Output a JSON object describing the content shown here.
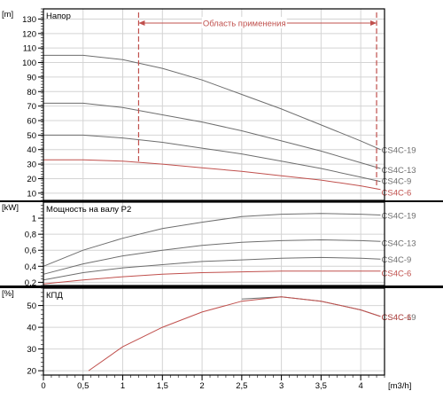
{
  "chart_data": {
    "type": "line",
    "x_axis": {
      "unit": "[m3/h]",
      "ticks": [
        "0",
        "0,5",
        "1",
        "1,5",
        "2",
        "2,5",
        "3",
        "3,5",
        "4"
      ],
      "min": 0,
      "max": 4.3
    },
    "application_range": {
      "label": "Область применения",
      "x_start": 1.2,
      "x_end": 4.2
    },
    "panels": [
      {
        "key": "head",
        "title": "Напор",
        "unit": "[m]",
        "ylim": [
          5,
          137
        ],
        "ticks": [
          "10",
          "20",
          "30",
          "40",
          "50",
          "60",
          "70",
          "80",
          "90",
          "100",
          "110",
          "120",
          "130"
        ],
        "series": [
          {
            "name": "CS4C-19",
            "color": "#6e6e6e",
            "points": [
              [
                0,
                105
              ],
              [
                0.5,
                105
              ],
              [
                1,
                102
              ],
              [
                1.5,
                96
              ],
              [
                2,
                88
              ],
              [
                2.5,
                78
              ],
              [
                3,
                68
              ],
              [
                3.5,
                57
              ],
              [
                4,
                46
              ],
              [
                4.25,
                40
              ]
            ]
          },
          {
            "name": "CS4C-13",
            "color": "#6e6e6e",
            "points": [
              [
                0,
                72
              ],
              [
                0.5,
                72
              ],
              [
                1,
                69
              ],
              [
                1.5,
                64
              ],
              [
                2,
                59
              ],
              [
                2.5,
                53
              ],
              [
                3,
                46
              ],
              [
                3.5,
                39
              ],
              [
                4,
                31
              ],
              [
                4.25,
                27
              ]
            ]
          },
          {
            "name": "CS4C-9",
            "color": "#6e6e6e",
            "points": [
              [
                0,
                50
              ],
              [
                0.5,
                50
              ],
              [
                1,
                48
              ],
              [
                1.5,
                45
              ],
              [
                2,
                41
              ],
              [
                2.5,
                37
              ],
              [
                3,
                32
              ],
              [
                3.5,
                27
              ],
              [
                4,
                21
              ],
              [
                4.25,
                18
              ]
            ]
          },
          {
            "name": "CS4C-6",
            "color": "#c0504d",
            "points": [
              [
                0,
                33
              ],
              [
                0.5,
                33
              ],
              [
                1,
                32
              ],
              [
                1.5,
                30
              ],
              [
                2,
                27.5
              ],
              [
                2.5,
                25
              ],
              [
                3,
                22
              ],
              [
                3.5,
                19
              ],
              [
                4,
                15
              ],
              [
                4.25,
                12.5
              ]
            ]
          }
        ]
      },
      {
        "key": "power",
        "title": "Мощность на валу P2",
        "unit": "[kW]",
        "ylim": [
          0.16,
          1.2
        ],
        "ticks": [
          "0,2",
          "0,4",
          "0,6",
          "0,8",
          "1"
        ],
        "series": [
          {
            "name": "CS4C-19",
            "color": "#6e6e6e",
            "points": [
              [
                0,
                0.4
              ],
              [
                0.5,
                0.6
              ],
              [
                1,
                0.75
              ],
              [
                1.5,
                0.87
              ],
              [
                2,
                0.95
              ],
              [
                2.5,
                1.02
              ],
              [
                3,
                1.05
              ],
              [
                3.5,
                1.06
              ],
              [
                4,
                1.05
              ],
              [
                4.25,
                1.04
              ]
            ]
          },
          {
            "name": "CS4C-13",
            "color": "#6e6e6e",
            "points": [
              [
                0,
                0.3
              ],
              [
                0.5,
                0.43
              ],
              [
                1,
                0.53
              ],
              [
                1.5,
                0.6
              ],
              [
                2,
                0.66
              ],
              [
                2.5,
                0.7
              ],
              [
                3,
                0.72
              ],
              [
                3.5,
                0.73
              ],
              [
                4,
                0.72
              ],
              [
                4.25,
                0.71
              ]
            ]
          },
          {
            "name": "CS4C-9",
            "color": "#6e6e6e",
            "points": [
              [
                0,
                0.23
              ],
              [
                0.5,
                0.32
              ],
              [
                1,
                0.38
              ],
              [
                1.5,
                0.42
              ],
              [
                2,
                0.46
              ],
              [
                2.5,
                0.48
              ],
              [
                3,
                0.5
              ],
              [
                3.5,
                0.51
              ],
              [
                4,
                0.5
              ],
              [
                4.25,
                0.49
              ]
            ]
          },
          {
            "name": "CS4C-6",
            "color": "#c0504d",
            "points": [
              [
                0,
                0.18
              ],
              [
                0.5,
                0.23
              ],
              [
                1,
                0.27
              ],
              [
                1.5,
                0.3
              ],
              [
                2,
                0.32
              ],
              [
                2.5,
                0.33
              ],
              [
                3,
                0.34
              ],
              [
                3.5,
                0.34
              ],
              [
                4,
                0.34
              ],
              [
                4.25,
                0.34
              ]
            ]
          }
        ]
      },
      {
        "key": "efficiency",
        "title": "КПД",
        "unit": "[%]",
        "ylim": [
          18,
          58
        ],
        "ticks": [
          "20",
          "30",
          "40",
          "50"
        ],
        "series": [
          {
            "name": "CS4C-19",
            "color": "#6e6e6e",
            "points": [
              [
                2.5,
                53
              ],
              [
                3,
                54
              ],
              [
                3.5,
                52
              ],
              [
                4,
                48
              ],
              [
                4.25,
                45
              ]
            ]
          },
          {
            "name": "CS4C-6",
            "color": "#c0504d",
            "points": [
              [
                0.57,
                20
              ],
              [
                1,
                31
              ],
              [
                1.5,
                40
              ],
              [
                2,
                47
              ],
              [
                2.5,
                52
              ],
              [
                3,
                54
              ],
              [
                3.5,
                52
              ],
              [
                4,
                48
              ],
              [
                4.25,
                45
              ]
            ]
          }
        ]
      }
    ]
  }
}
